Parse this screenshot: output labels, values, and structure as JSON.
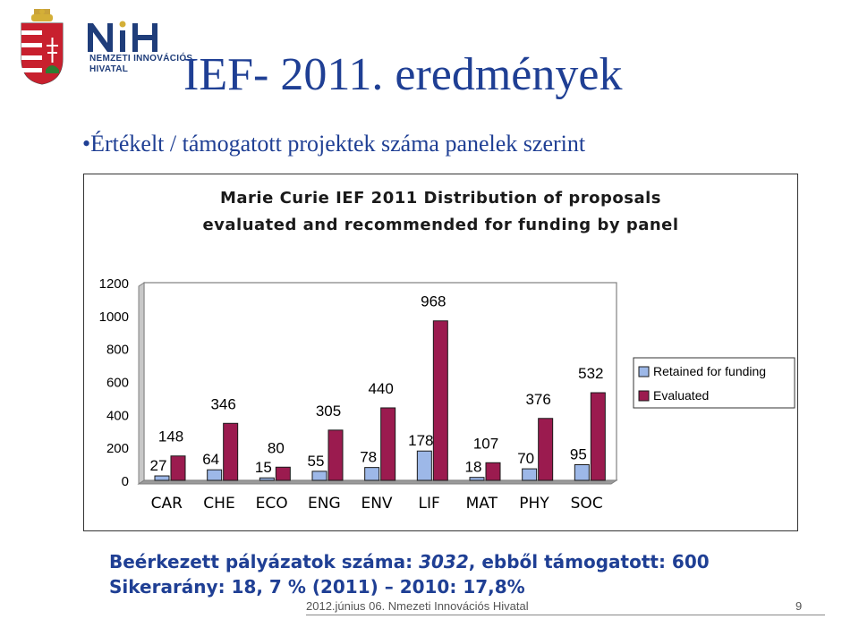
{
  "logo": {
    "mark": "NIH",
    "lines": [
      "NEMZETI INNOVÁCIÓS",
      "HIVATAL"
    ]
  },
  "slide": {
    "title": "IEF- 2011. eredmények",
    "bullet": "•Értékelt / támogatott projektek száma panelek szerint"
  },
  "chart_data": {
    "type": "bar",
    "title_lines": [
      "Marie Curie IEF 2011 Distribution of proposals",
      "evaluated and recommended for funding by panel"
    ],
    "categories": [
      "CAR",
      "CHE",
      "ECO",
      "ENG",
      "ENV",
      "LIF",
      "MAT",
      "PHY",
      "SOC"
    ],
    "series": [
      {
        "name": "Retained for funding",
        "values": [
          27,
          64,
          15,
          55,
          78,
          178,
          18,
          70,
          95
        ],
        "color": "#9db8e8"
      },
      {
        "name": "Evaluated",
        "values": [
          148,
          346,
          80,
          305,
          440,
          968,
          107,
          376,
          532
        ],
        "color": "#9b1b4f"
      }
    ],
    "ylim": [
      0,
      1200
    ],
    "yticks": [
      0,
      200,
      400,
      600,
      800,
      1000,
      1200
    ],
    "grid": false,
    "legend_position": "right"
  },
  "footer": {
    "line1_prefix": "Beérkezett pályázatok száma: ",
    "line1_number": "3032",
    "line1_suffix": ", ebből támogatott: 600",
    "line2": "Sikerarány: 18, 7 % (2011) – 2010: 17,8%",
    "meta": "2012.június 06. Nmezeti Innovációs Hivatal",
    "page": "9"
  }
}
